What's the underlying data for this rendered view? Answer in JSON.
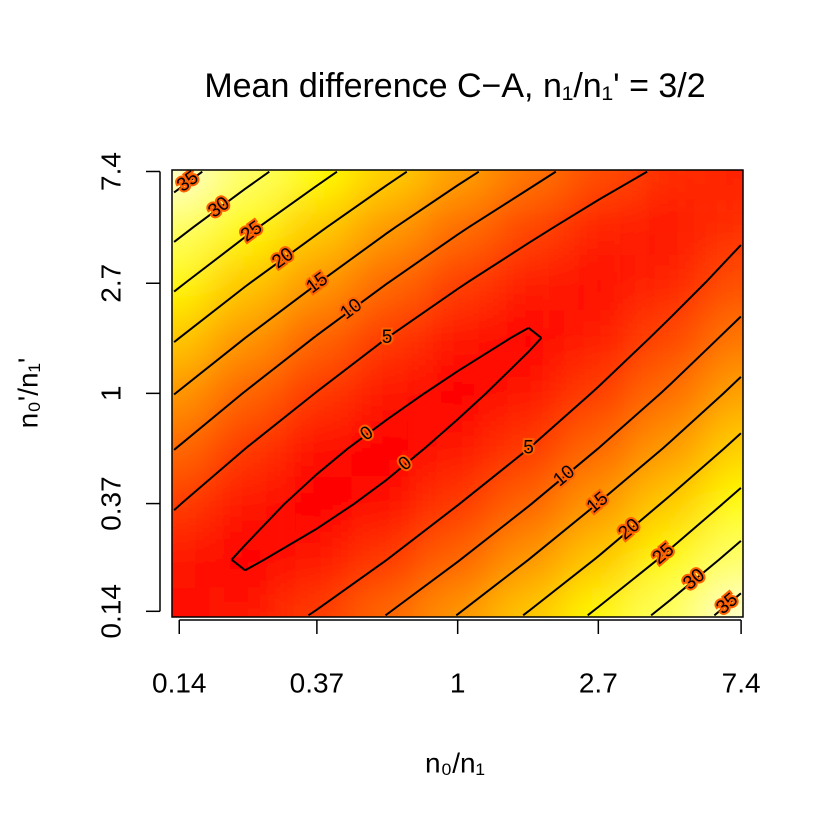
{
  "chart_data": {
    "type": "contour",
    "title": "Mean difference C−A, n₁/n₁' = 3/2",
    "xlabel": "n₀/n₁",
    "ylabel": "n₀'/n₁'",
    "x": [
      0.135,
      0.223,
      0.368,
      0.607,
      1,
      1.649,
      2.718,
      4.482,
      7.389
    ],
    "y": [
      0.135,
      0.223,
      0.368,
      0.607,
      1,
      1.649,
      2.718,
      4.482,
      7.389
    ],
    "z": [
      [
        0.3,
        1.7,
        5.4,
        10.1,
        15.1,
        20.4,
        25.9,
        31.5,
        37.1
      ],
      [
        1.7,
        -0.4,
        1.1,
        5.0,
        9.8,
        15.0,
        20.4,
        26.0,
        31.8
      ],
      [
        5.4,
        1.1,
        -0.9,
        0.8,
        4.9,
        9.8,
        15.2,
        20.8,
        26.5
      ],
      [
        10.1,
        5.0,
        0.8,
        -1.0,
        0.9,
        5.0,
        10.1,
        15.6,
        21.4
      ],
      [
        15.1,
        9.8,
        4.9,
        0.9,
        -0.8,
        1.2,
        5.5,
        10.7,
        16.4
      ],
      [
        20.4,
        15.0,
        9.8,
        5.0,
        1.2,
        -0.4,
        1.8,
        6.3,
        11.7
      ],
      [
        25.9,
        20.4,
        15.2,
        10.1,
        5.5,
        1.8,
        0.4,
        2.7,
        7.3
      ],
      [
        31.5,
        26.0,
        20.8,
        15.6,
        10.7,
        6.3,
        2.7,
        1.5,
        3.9
      ],
      [
        37.1,
        31.8,
        26.5,
        21.4,
        16.4,
        11.7,
        7.3,
        3.9,
        2.8
      ]
    ],
    "levels": [
      0,
      5,
      10,
      15,
      20,
      25,
      30,
      35
    ],
    "colormap": "heat",
    "xlog": true,
    "ylog": true,
    "xlim": [
      0.133,
      7.5
    ],
    "ylim": [
      0.133,
      7.5
    ],
    "xticks": [
      0.14,
      0.37,
      1,
      2.7,
      7.4
    ],
    "yticks": [
      0.14,
      0.37,
      1,
      2.7,
      7.4
    ]
  }
}
